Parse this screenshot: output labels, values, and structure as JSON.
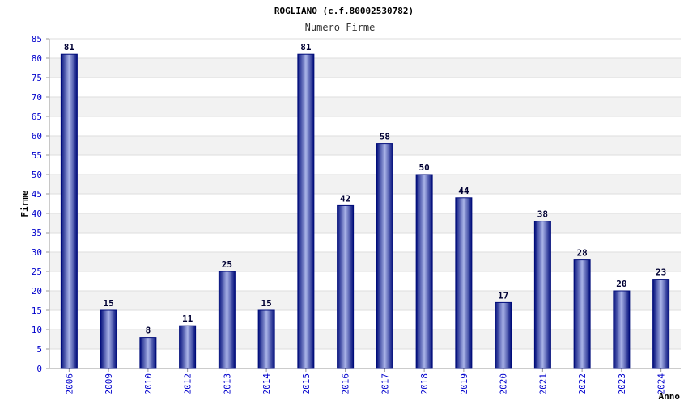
{
  "chart_data": {
    "type": "bar",
    "title": "ROGLIANO (c.f.80002530782)",
    "subtitle": "Numero Firme",
    "xlabel": "Anno",
    "ylabel": "Firme",
    "categories": [
      "2006",
      "2009",
      "2010",
      "2012",
      "2013",
      "2014",
      "2015",
      "2016",
      "2017",
      "2018",
      "2019",
      "2020",
      "2021",
      "2022",
      "2023",
      "2024"
    ],
    "values": [
      81,
      15,
      8,
      11,
      25,
      15,
      81,
      42,
      58,
      50,
      44,
      17,
      38,
      28,
      20,
      23
    ],
    "ylim": [
      0,
      85
    ],
    "ytick_step": 5,
    "grid": true,
    "colors": {
      "bar_dark": "#000c7a",
      "bar_light": "#aab4e8",
      "band_shade": "#f2f2f2",
      "axis": "#999999",
      "tick_text": "#0000cc"
    }
  }
}
